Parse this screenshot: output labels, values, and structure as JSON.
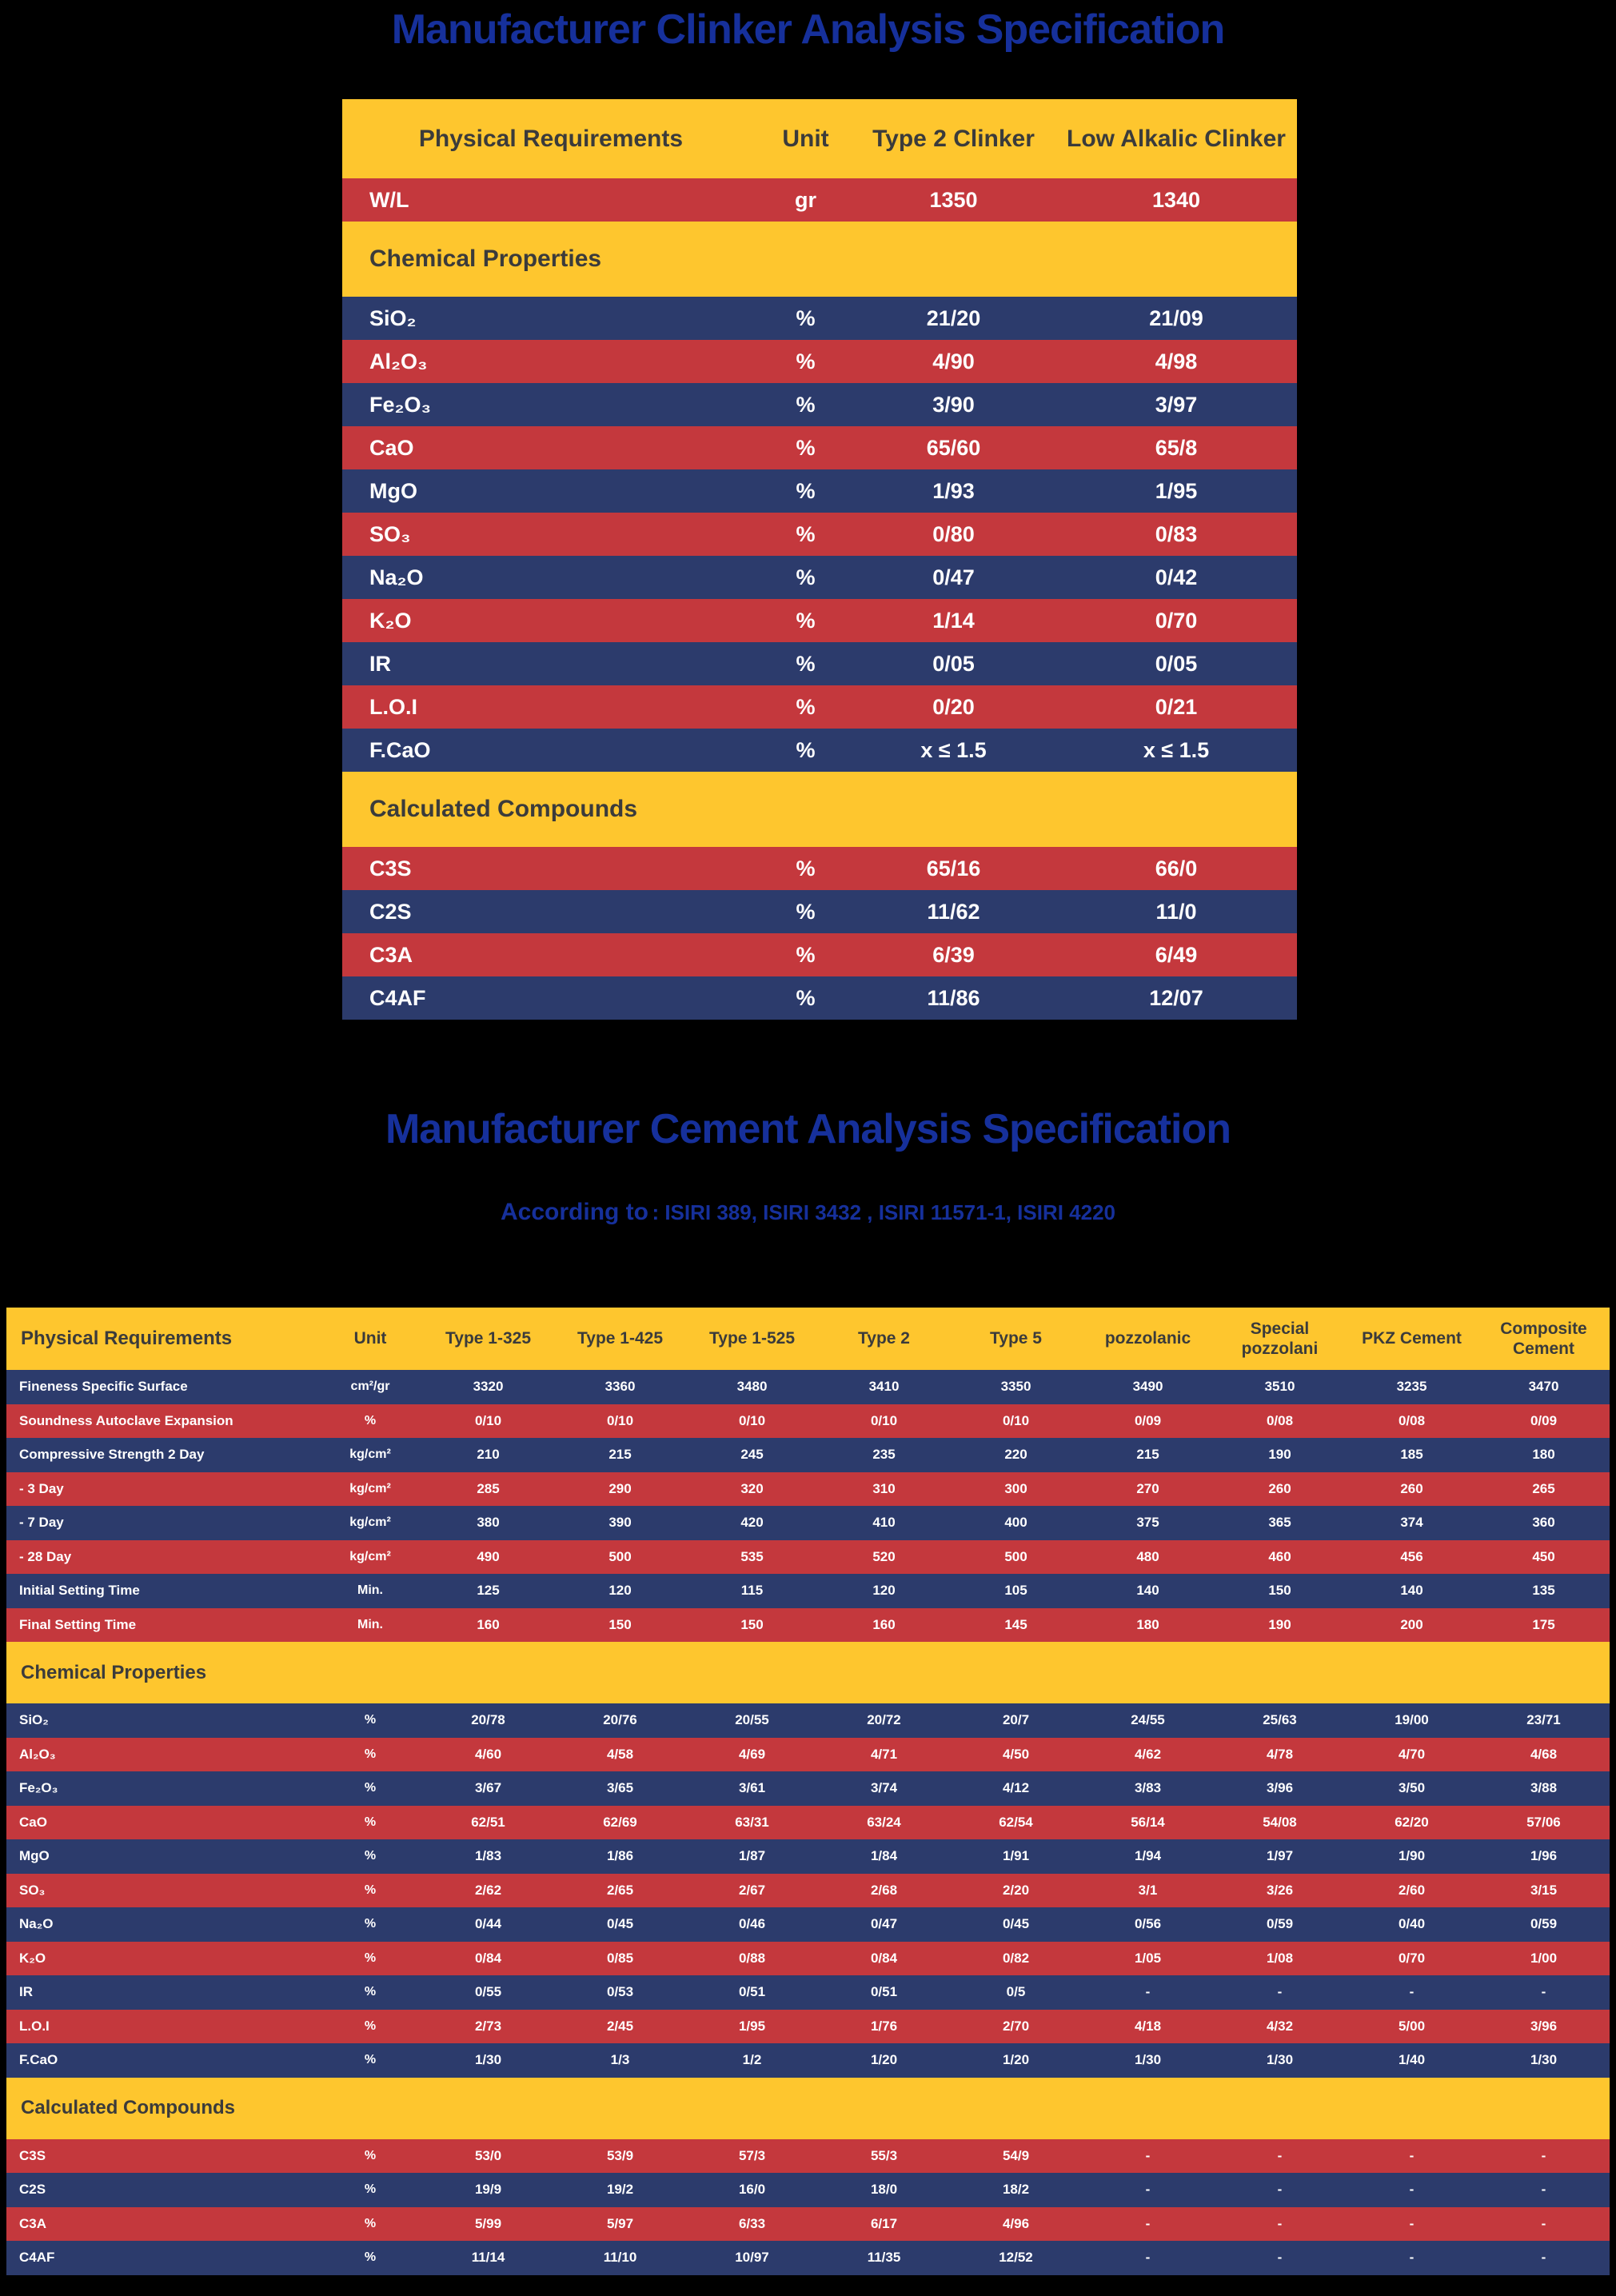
{
  "colors": {
    "background": "#000000",
    "yellow": "#FEC62E",
    "red": "#C4383D",
    "blue": "#2C3B6C",
    "title_blue": "#16309B",
    "header_text": "#3B3B3B",
    "row_text": "#FFFFFF"
  },
  "page": {
    "title1": "Manufacturer Clinker Analysis Specification",
    "title2": "Manufacturer Cement Analysis Specification",
    "subtitle_prefix": "According to",
    "subtitle_standards": ": ISIRI 389, ISIRI 3432 , ISIRI 11571-1, ISIRI 4220"
  },
  "clinker_table": {
    "headers": [
      "Physical Requirements",
      "Unit",
      "Type 2 Clinker",
      "Low Alkalic Clinker"
    ],
    "section_chemical": "Chemical Properties",
    "section_calculated": "Calculated Compounds",
    "physical_rows": [
      {
        "label": "W/L",
        "unit": "gr",
        "values": [
          "1350",
          "1340"
        ]
      }
    ],
    "chemical_rows": [
      {
        "label": "SiO₂",
        "unit": "%",
        "values": [
          "21/20",
          "21/09"
        ]
      },
      {
        "label": "Al₂O₃",
        "unit": "%",
        "values": [
          "4/90",
          "4/98"
        ]
      },
      {
        "label": "Fe₂O₃",
        "unit": "%",
        "values": [
          "3/90",
          "3/97"
        ]
      },
      {
        "label": "CaO",
        "unit": "%",
        "values": [
          "65/60",
          "65/8"
        ]
      },
      {
        "label": "MgO",
        "unit": "%",
        "values": [
          "1/93",
          "1/95"
        ]
      },
      {
        "label": "SO₃",
        "unit": "%",
        "values": [
          "0/80",
          "0/83"
        ]
      },
      {
        "label": "Na₂O",
        "unit": "%",
        "values": [
          "0/47",
          "0/42"
        ]
      },
      {
        "label": "K₂O",
        "unit": "%",
        "values": [
          "1/14",
          "0/70"
        ]
      },
      {
        "label": "IR",
        "unit": "%",
        "values": [
          "0/05",
          "0/05"
        ]
      },
      {
        "label": "L.O.I",
        "unit": "%",
        "values": [
          "0/20",
          "0/21"
        ]
      },
      {
        "label": "F.CaO",
        "unit": "%",
        "values": [
          "x ≤ 1.5",
          "x ≤ 1.5"
        ]
      }
    ],
    "calculated_rows": [
      {
        "label": "C3S",
        "unit": "%",
        "values": [
          "65/16",
          "66/0"
        ]
      },
      {
        "label": "C2S",
        "unit": "%",
        "values": [
          "11/62",
          "11/0"
        ]
      },
      {
        "label": "C3A",
        "unit": "%",
        "values": [
          "6/39",
          "6/49"
        ]
      },
      {
        "label": "C4AF",
        "unit": "%",
        "values": [
          "11/86",
          "12/07"
        ]
      }
    ]
  },
  "cement_table": {
    "headers": [
      "Physical Requirements",
      "Unit",
      "Type 1-325",
      "Type 1-425",
      "Type 1-525",
      "Type 2",
      "Type 5",
      "pozzolanic",
      "Special pozzolani",
      "PKZ Cement",
      "Composite Cement"
    ],
    "section_chemical": "Chemical Properties",
    "section_calculated": "Calculated Compounds",
    "physical_rows": [
      {
        "label": "Fineness  Specific Surface",
        "unit": "cm²/gr",
        "values": [
          "3320",
          "3360",
          "3480",
          "3410",
          "3350",
          "3490",
          "3510",
          "3235",
          "3470"
        ]
      },
      {
        "label": "Soundness Autoclave Expansion",
        "unit": "%",
        "values": [
          "0/10",
          "0/10",
          "0/10",
          "0/10",
          "0/10",
          "0/09",
          "0/08",
          "0/08",
          "0/09"
        ]
      },
      {
        "label": "Compressive  Strength  2 Day",
        "unit": "kg/cm²",
        "values": [
          "210",
          "215",
          "245",
          "235",
          "220",
          "215",
          "190",
          "185",
          "180"
        ]
      },
      {
        "label": "- 3 Day",
        "unit": "kg/cm²",
        "values": [
          "285",
          "290",
          "320",
          "310",
          "300",
          "270",
          "260",
          "260",
          "265"
        ]
      },
      {
        "label": "- 7 Day",
        "unit": "kg/cm²",
        "values": [
          "380",
          "390",
          "420",
          "410",
          "400",
          "375",
          "365",
          "374",
          "360"
        ]
      },
      {
        "label": "- 28 Day",
        "unit": "kg/cm²",
        "values": [
          "490",
          "500",
          "535",
          "520",
          "500",
          "480",
          "460",
          "456",
          "450"
        ]
      },
      {
        "label": "Initial Setting Time",
        "unit": "Min.",
        "values": [
          "125",
          "120",
          "115",
          "120",
          "105",
          "140",
          "150",
          "140",
          "135"
        ]
      },
      {
        "label": "Final Setting Time",
        "unit": "Min.",
        "values": [
          "160",
          "150",
          "150",
          "160",
          "145",
          "180",
          "190",
          "200",
          "175"
        ]
      }
    ],
    "chemical_rows": [
      {
        "label": "SiO₂",
        "unit": "%",
        "values": [
          "20/78",
          "20/76",
          "20/55",
          "20/72",
          "20/7",
          "24/55",
          "25/63",
          "19/00",
          "23/71"
        ]
      },
      {
        "label": "Al₂O₃",
        "unit": "%",
        "values": [
          "4/60",
          "4/58",
          "4/69",
          "4/71",
          "4/50",
          "4/62",
          "4/78",
          "4/70",
          "4/68"
        ]
      },
      {
        "label": "Fe₂O₃",
        "unit": "%",
        "values": [
          "3/67",
          "3/65",
          "3/61",
          "3/74",
          "4/12",
          "3/83",
          "3/96",
          "3/50",
          "3/88"
        ]
      },
      {
        "label": "CaO",
        "unit": "%",
        "values": [
          "62/51",
          "62/69",
          "63/31",
          "63/24",
          "62/54",
          "56/14",
          "54/08",
          "62/20",
          "57/06"
        ]
      },
      {
        "label": "MgO",
        "unit": "%",
        "values": [
          "1/83",
          "1/86",
          "1/87",
          "1/84",
          "1/91",
          "1/94",
          "1/97",
          "1/90",
          "1/96"
        ]
      },
      {
        "label": "SO₃",
        "unit": "%",
        "values": [
          "2/62",
          "2/65",
          "2/67",
          "2/68",
          "2/20",
          "3/1",
          "3/26",
          "2/60",
          "3/15"
        ]
      },
      {
        "label": "Na₂O",
        "unit": "%",
        "values": [
          "0/44",
          "0/45",
          "0/46",
          "0/47",
          "0/45",
          "0/56",
          "0/59",
          "0/40",
          "0/59"
        ]
      },
      {
        "label": "K₂O",
        "unit": "%",
        "values": [
          "0/84",
          "0/85",
          "0/88",
          "0/84",
          "0/82",
          "1/05",
          "1/08",
          "0/70",
          "1/00"
        ]
      },
      {
        "label": "IR",
        "unit": "%",
        "values": [
          "0/55",
          "0/53",
          "0/51",
          "0/51",
          "0/5",
          "-",
          "-",
          "-",
          "-"
        ]
      },
      {
        "label": "L.O.I",
        "unit": "%",
        "values": [
          "2/73",
          "2/45",
          "1/95",
          "1/76",
          "2/70",
          "4/18",
          "4/32",
          "5/00",
          "3/96"
        ]
      },
      {
        "label": "F.CaO",
        "unit": "%",
        "values": [
          "1/30",
          "1/3",
          "1/2",
          "1/20",
          "1/20",
          "1/30",
          "1/30",
          "1/40",
          "1/30"
        ]
      }
    ],
    "calculated_rows": [
      {
        "label": "C3S",
        "unit": "%",
        "values": [
          "53/0",
          "53/9",
          "57/3",
          "55/3",
          "54/9",
          "-",
          "-",
          "-",
          "-"
        ]
      },
      {
        "label": "C2S",
        "unit": "%",
        "values": [
          "19/9",
          "19/2",
          "16/0",
          "18/0",
          "18/2",
          "-",
          "-",
          "-",
          "-"
        ]
      },
      {
        "label": "C3A",
        "unit": "%",
        "values": [
          "5/99",
          "5/97",
          "6/33",
          "6/17",
          "4/96",
          "-",
          "-",
          "-",
          "-"
        ]
      },
      {
        "label": "C4AF",
        "unit": "%",
        "values": [
          "11/14",
          "11/10",
          "10/97",
          "11/35",
          "12/52",
          "-",
          "-",
          "-",
          "-"
        ]
      }
    ]
  }
}
